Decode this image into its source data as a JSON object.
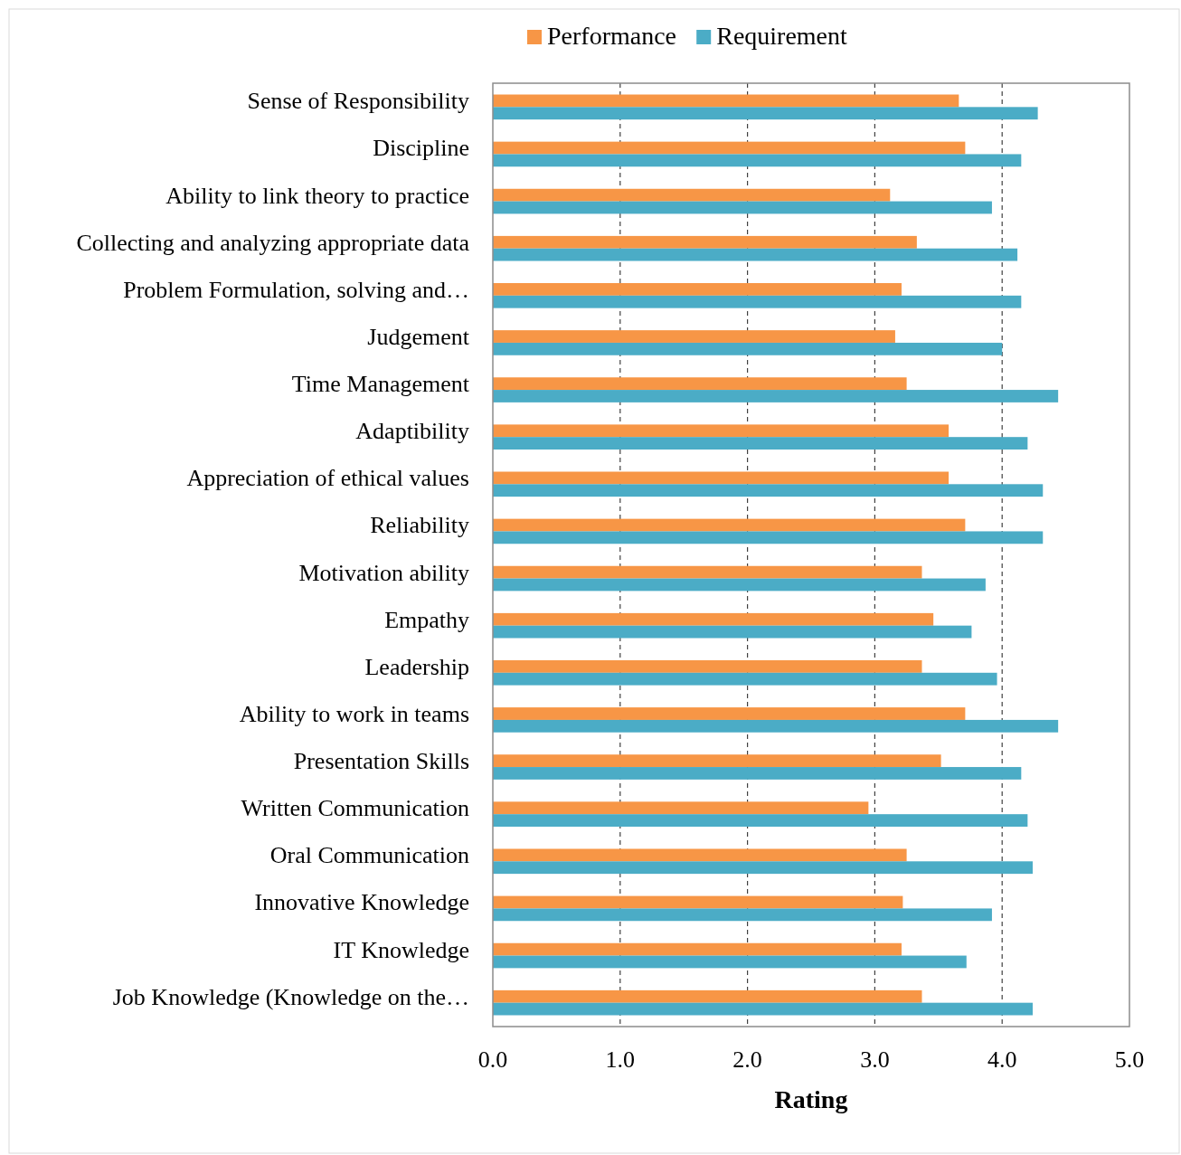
{
  "chart_data": {
    "type": "bar",
    "orientation": "horizontal",
    "xlabel": "Rating",
    "categories": [
      "Sense of Responsibility",
      "Discipline",
      "Ability to link theory to practice",
      "Collecting and analyzing appropriate data",
      "Problem Formulation, solving and…",
      "Judgement",
      "Time Management",
      "Adaptibility",
      "Appreciation of ethical values",
      "Reliability",
      "Motivation ability",
      "Empathy",
      "Leadership",
      "Ability to work in teams",
      "Presentation Skills",
      "Written Communication",
      "Oral Communication",
      "Innovative Knowledge",
      "IT Knowledge",
      "Job Knowledge (Knowledge on the…"
    ],
    "series": [
      {
        "name": "Performance",
        "color": "#f79646",
        "values": [
          3.66,
          3.71,
          3.12,
          3.33,
          3.21,
          3.16,
          3.25,
          3.58,
          3.58,
          3.71,
          3.37,
          3.46,
          3.37,
          3.71,
          3.52,
          2.95,
          3.25,
          3.22,
          3.21,
          3.37
        ]
      },
      {
        "name": "Requirement",
        "color": "#4bacc6",
        "values": [
          4.28,
          4.15,
          3.92,
          4.12,
          4.15,
          4.0,
          4.44,
          4.2,
          4.32,
          4.32,
          3.87,
          3.76,
          3.96,
          4.44,
          4.15,
          4.2,
          4.24,
          3.92,
          3.72,
          4.24
        ]
      }
    ],
    "xlim": [
      0,
      5
    ],
    "xticks": [
      {
        "value": 0,
        "label": "0.0"
      },
      {
        "value": 1,
        "label": "1.0"
      },
      {
        "value": 2,
        "label": "2.0"
      },
      {
        "value": 3,
        "label": "3.0"
      },
      {
        "value": 4,
        "label": "4.0"
      },
      {
        "value": 5,
        "label": "5.0"
      }
    ],
    "grid": "x",
    "legend": "top"
  }
}
